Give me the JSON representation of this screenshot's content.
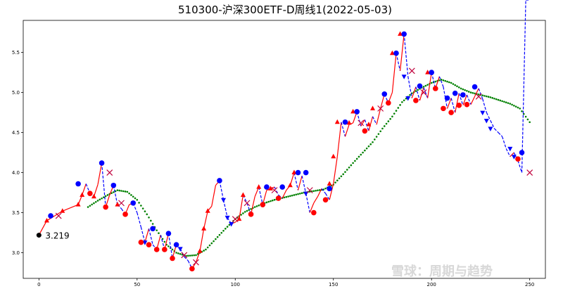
{
  "title": "510300-沪深300ETF-D周线1(2022-05-03)",
  "watermark": "雪球：周期与趋势",
  "colors": {
    "up": "#ff0000",
    "down": "#0000ff",
    "ma": "#008000",
    "start": "#000000"
  },
  "chart_data": {
    "type": "line",
    "title": "510300-沪深300ETF-D周线1(2022-05-03)",
    "xlabel": "",
    "ylabel": "",
    "xlim": [
      -8,
      258
    ],
    "ylim": [
      2.68,
      5.9
    ],
    "x_ticks": [
      0,
      50,
      100,
      150,
      200,
      250
    ],
    "y_ticks": [
      3.0,
      3.5,
      4.0,
      4.5,
      5.0,
      5.5
    ],
    "grid": false,
    "start_annotation": {
      "x": 0,
      "y": 3.219,
      "label": "3.219"
    },
    "price_x": [
      0,
      4,
      8,
      12,
      16,
      20,
      22,
      24,
      26,
      28,
      30,
      32,
      34,
      36,
      38,
      40,
      42,
      44,
      46,
      48,
      50,
      52,
      54,
      56,
      58,
      60,
      62,
      64,
      66,
      68,
      70,
      72,
      74,
      76,
      78,
      80,
      82,
      84,
      86,
      88,
      90,
      92,
      94,
      96,
      98,
      100,
      102,
      104,
      106,
      108,
      110,
      112,
      114,
      116,
      118,
      120,
      122,
      124,
      126,
      128,
      130,
      132,
      134,
      136,
      138,
      140,
      142,
      144,
      146,
      148,
      150,
      152,
      154,
      156,
      158,
      160,
      162,
      164,
      166,
      168,
      170,
      172,
      174,
      176,
      178,
      180,
      182,
      184,
      186,
      188,
      190,
      192,
      194,
      196,
      198,
      200,
      202,
      204,
      206,
      208,
      210,
      212,
      214,
      216,
      218,
      220,
      222,
      224,
      226,
      228,
      230,
      232,
      234,
      236,
      238,
      240,
      242,
      244,
      246,
      248,
      250
    ],
    "price_y": [
      3.22,
      3.4,
      3.46,
      3.52,
      3.56,
      3.6,
      3.72,
      3.86,
      3.74,
      3.7,
      3.85,
      4.12,
      3.57,
      3.72,
      3.84,
      3.6,
      3.55,
      3.48,
      3.6,
      3.62,
      3.5,
      3.32,
      3.13,
      3.3,
      3.1,
      3.04,
      3.22,
      3.04,
      3.24,
      2.93,
      3.1,
      3.05,
      2.95,
      2.9,
      2.8,
      2.88,
      3.02,
      3.3,
      3.52,
      3.58,
      3.84,
      3.9,
      3.66,
      3.44,
      3.36,
      3.38,
      3.42,
      3.72,
      3.62,
      3.48,
      3.7,
      3.82,
      3.6,
      3.78,
      3.8,
      3.82,
      3.72,
      3.68,
      3.78,
      3.84,
      4.0,
      3.78,
      3.96,
      3.74,
      3.5,
      3.62,
      3.7,
      3.8,
      3.74,
      3.66,
      3.86,
      4.2,
      4.63,
      4.45,
      4.6,
      4.62,
      4.76,
      4.58,
      4.66,
      4.52,
      4.7,
      4.6,
      4.8,
      4.98,
      4.87,
      5.0,
      5.49,
      5.27,
      5.73,
      5.2,
      4.93,
      5.07,
      4.9,
      5.06,
      4.93,
      5.25,
      5.05,
      5.2,
      5.07,
      4.8,
      4.93,
      4.75,
      4.99,
      4.84,
      4.97,
      4.85,
      4.95,
      5.05,
      4.92,
      4.75,
      4.65,
      4.55,
      4.5,
      4.45,
      4.3,
      4.2,
      4.25,
      4.15,
      4.0
    ],
    "ma_x": [
      25,
      30,
      35,
      40,
      45,
      50,
      55,
      60,
      65,
      70,
      75,
      80,
      85,
      90,
      95,
      100,
      105,
      110,
      115,
      120,
      125,
      130,
      135,
      140,
      145,
      150,
      155,
      160,
      165,
      170,
      175,
      180,
      185,
      190,
      195,
      200,
      205,
      210,
      215,
      220,
      225,
      230,
      235,
      240,
      245,
      250
    ],
    "ma_y": [
      3.57,
      3.65,
      3.72,
      3.78,
      3.76,
      3.66,
      3.48,
      3.28,
      3.1,
      3.0,
      2.96,
      2.97,
      3.04,
      3.17,
      3.3,
      3.42,
      3.51,
      3.57,
      3.62,
      3.66,
      3.69,
      3.72,
      3.75,
      3.77,
      3.79,
      3.85,
      3.98,
      4.12,
      4.25,
      4.38,
      4.55,
      4.7,
      4.88,
      4.99,
      5.06,
      5.12,
      5.16,
      5.12,
      5.05,
      5.0,
      4.97,
      4.94,
      4.9,
      4.86,
      4.8,
      4.63
    ],
    "up_markers": [
      {
        "x": 4,
        "y": 3.4
      },
      {
        "x": 12,
        "y": 3.52
      },
      {
        "x": 20,
        "y": 3.6
      },
      {
        "x": 22,
        "y": 3.72
      },
      {
        "x": 28,
        "y": 3.7
      },
      {
        "x": 40,
        "y": 3.6
      },
      {
        "x": 82,
        "y": 3.02
      },
      {
        "x": 84,
        "y": 3.3
      },
      {
        "x": 86,
        "y": 3.52
      },
      {
        "x": 102,
        "y": 3.42
      },
      {
        "x": 104,
        "y": 3.72
      },
      {
        "x": 112,
        "y": 3.82
      },
      {
        "x": 118,
        "y": 3.8
      },
      {
        "x": 128,
        "y": 3.84
      },
      {
        "x": 130,
        "y": 4.0
      },
      {
        "x": 148,
        "y": 3.86
      },
      {
        "x": 150,
        "y": 4.2
      },
      {
        "x": 152,
        "y": 4.63
      },
      {
        "x": 158,
        "y": 4.62
      },
      {
        "x": 160,
        "y": 4.76
      },
      {
        "x": 168,
        "y": 4.6
      },
      {
        "x": 170,
        "y": 4.8
      },
      {
        "x": 180,
        "y": 5.49
      },
      {
        "x": 184,
        "y": 5.73
      },
      {
        "x": 198,
        "y": 5.25
      }
    ],
    "down_markers": [
      {
        "x": 38,
        "y": 3.84
      },
      {
        "x": 54,
        "y": 3.13
      },
      {
        "x": 72,
        "y": 3.05
      },
      {
        "x": 94,
        "y": 3.66
      },
      {
        "x": 96,
        "y": 3.44
      },
      {
        "x": 98,
        "y": 3.36
      },
      {
        "x": 136,
        "y": 3.74
      },
      {
        "x": 186,
        "y": 5.2
      },
      {
        "x": 188,
        "y": 4.93
      },
      {
        "x": 226,
        "y": 4.75
      },
      {
        "x": 228,
        "y": 4.65
      },
      {
        "x": 230,
        "y": 4.55
      },
      {
        "x": 240,
        "y": 4.3
      },
      {
        "x": 242,
        "y": 4.2
      }
    ],
    "red_dots": [
      {
        "x": 26,
        "y": 3.74
      },
      {
        "x": 34,
        "y": 3.57
      },
      {
        "x": 44,
        "y": 3.48
      },
      {
        "x": 52,
        "y": 3.13
      },
      {
        "x": 56,
        "y": 3.1
      },
      {
        "x": 60,
        "y": 3.04
      },
      {
        "x": 64,
        "y": 3.04
      },
      {
        "x": 68,
        "y": 2.93
      },
      {
        "x": 78,
        "y": 2.8
      },
      {
        "x": 108,
        "y": 3.48
      },
      {
        "x": 114,
        "y": 3.6
      },
      {
        "x": 122,
        "y": 3.68
      },
      {
        "x": 140,
        "y": 3.5
      },
      {
        "x": 146,
        "y": 3.66
      },
      {
        "x": 166,
        "y": 4.52
      },
      {
        "x": 178,
        "y": 4.87
      },
      {
        "x": 192,
        "y": 4.9
      },
      {
        "x": 202,
        "y": 5.05
      },
      {
        "x": 206,
        "y": 4.8
      },
      {
        "x": 210,
        "y": 4.75
      },
      {
        "x": 214,
        "y": 4.84
      },
      {
        "x": 218,
        "y": 4.85
      },
      {
        "x": 244,
        "y": 4.17
      }
    ],
    "blue_dots": [
      {
        "x": 6,
        "y": 3.46
      },
      {
        "x": 20,
        "y": 3.86
      },
      {
        "x": 32,
        "y": 4.12
      },
      {
        "x": 38,
        "y": 3.84
      },
      {
        "x": 48,
        "y": 3.62
      },
      {
        "x": 58,
        "y": 3.3
      },
      {
        "x": 66,
        "y": 3.24
      },
      {
        "x": 70,
        "y": 3.1
      },
      {
        "x": 92,
        "y": 3.9
      },
      {
        "x": 116,
        "y": 3.82
      },
      {
        "x": 124,
        "y": 3.82
      },
      {
        "x": 132,
        "y": 4.0
      },
      {
        "x": 136,
        "y": 4.0
      },
      {
        "x": 148,
        "y": 3.8
      },
      {
        "x": 156,
        "y": 4.63
      },
      {
        "x": 162,
        "y": 4.76
      },
      {
        "x": 176,
        "y": 4.98
      },
      {
        "x": 182,
        "y": 5.49
      },
      {
        "x": 186,
        "y": 5.73
      },
      {
        "x": 194,
        "y": 5.08
      },
      {
        "x": 200,
        "y": 5.25
      },
      {
        "x": 208,
        "y": 4.93
      },
      {
        "x": 212,
        "y": 4.99
      },
      {
        "x": 216,
        "y": 4.97
      },
      {
        "x": 222,
        "y": 5.07
      },
      {
        "x": 246,
        "y": 4.25
      }
    ],
    "cross_markers": [
      {
        "x": 10,
        "y": 3.46
      },
      {
        "x": 36,
        "y": 4.0
      },
      {
        "x": 42,
        "y": 3.62
      },
      {
        "x": 74,
        "y": 2.97
      },
      {
        "x": 80,
        "y": 2.88
      },
      {
        "x": 100,
        "y": 3.42
      },
      {
        "x": 106,
        "y": 3.62
      },
      {
        "x": 120,
        "y": 3.78
      },
      {
        "x": 138,
        "y": 3.78
      },
      {
        "x": 164,
        "y": 4.62
      },
      {
        "x": 174,
        "y": 4.8
      },
      {
        "x": 190,
        "y": 5.27
      },
      {
        "x": 196,
        "y": 5.0
      },
      {
        "x": 224,
        "y": 4.95
      },
      {
        "x": 250,
        "y": 4.0
      }
    ]
  }
}
